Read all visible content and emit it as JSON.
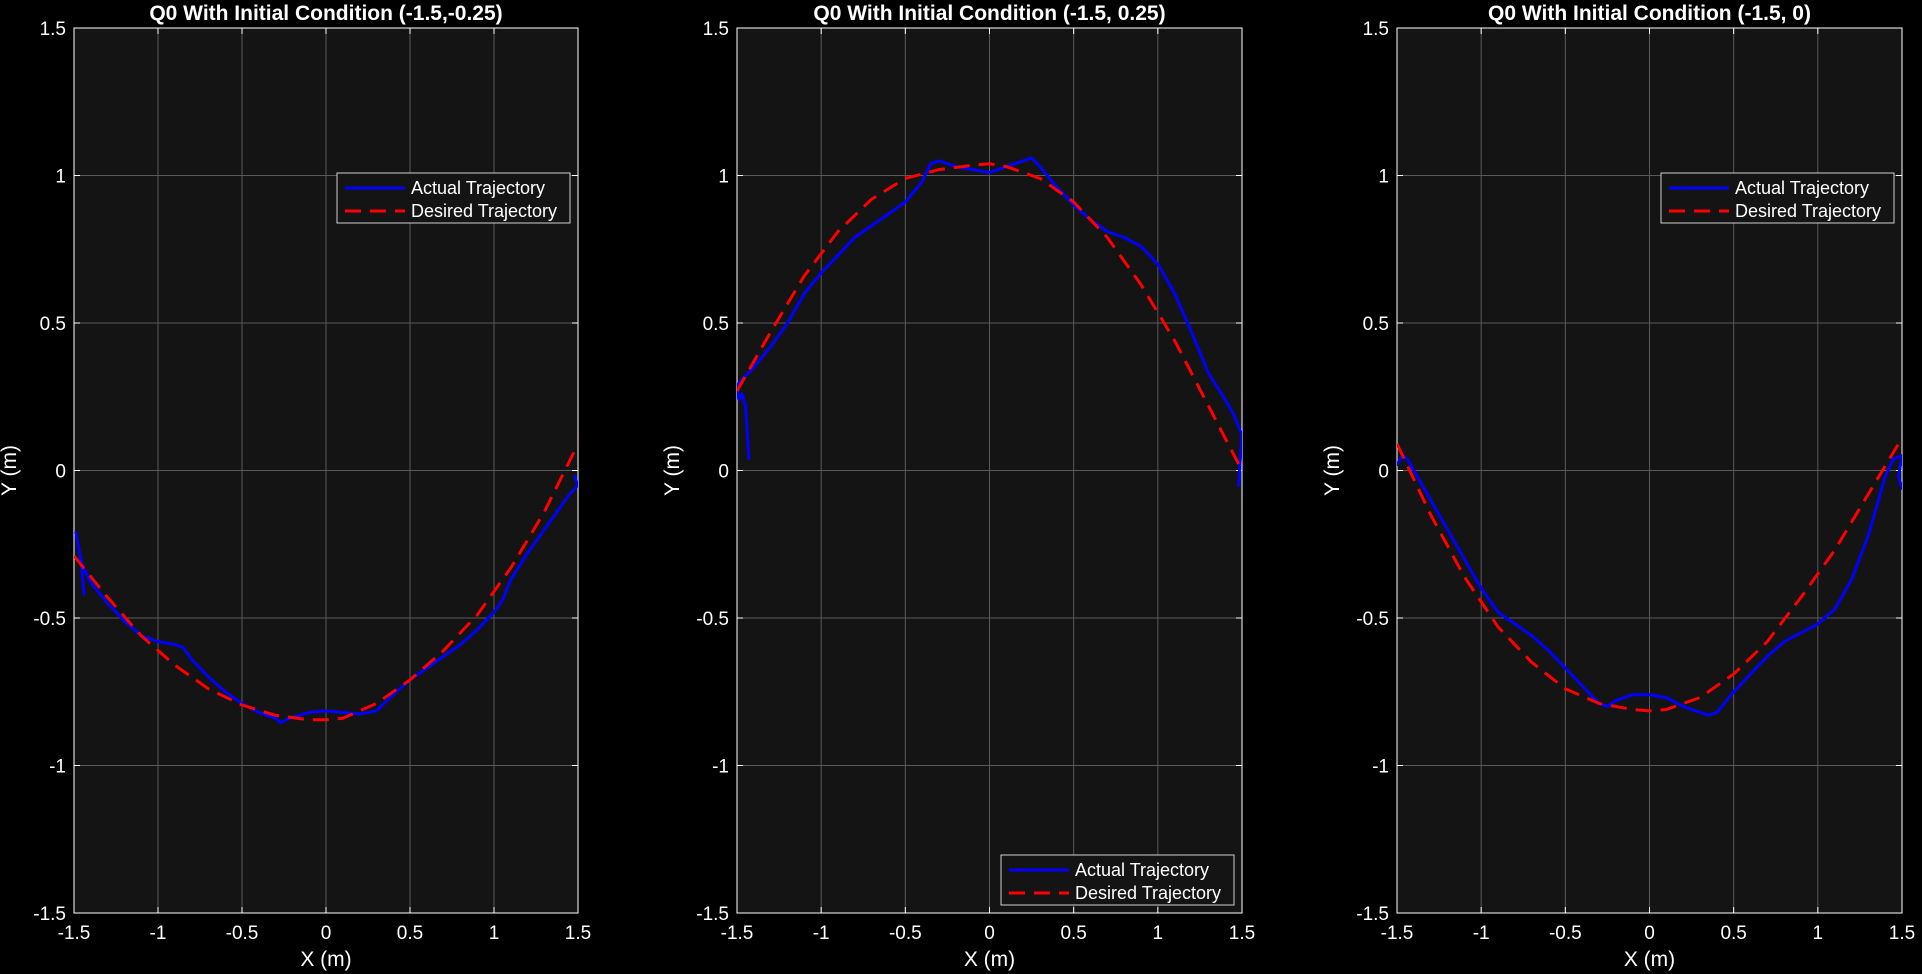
{
  "figure": {
    "background": "#000000",
    "axes_background": "#141414",
    "grid_color": "#5a5a5a"
  },
  "chart_data": [
    {
      "type": "line",
      "title": "Q0 With Initial Condition (-1.5,-0.25)",
      "xlabel": "X (m)",
      "ylabel": "Y (m)",
      "xlim": [
        -1.5,
        1.5
      ],
      "ylim": [
        -1.5,
        1.5
      ],
      "xticks": [
        "-1.5",
        "-1",
        "-0.5",
        "0",
        "0.5",
        "1",
        "1.5"
      ],
      "yticks": [
        "-1.5",
        "-1",
        "-0.5",
        "0",
        "0.5",
        "1",
        "1.5"
      ],
      "grid": true,
      "legend": "top-right",
      "series": [
        {
          "name": "Actual Trajectory",
          "color": "#0000ff",
          "style": "solid",
          "x": [
            -1.44,
            -1.46,
            -1.49,
            -1.47,
            -1.45,
            -1.4,
            -1.3,
            -1.2,
            -1.1,
            -1.0,
            -0.9,
            -0.85,
            -0.8,
            -0.7,
            -0.6,
            -0.5,
            -0.4,
            -0.3,
            -0.27,
            -0.22,
            -0.1,
            0.0,
            0.1,
            0.2,
            0.3,
            0.4,
            0.5,
            0.6,
            0.7,
            0.8,
            0.9,
            1.0,
            1.05,
            1.1,
            1.2,
            1.3,
            1.4,
            1.45,
            1.5,
            1.48
          ],
          "y": [
            -0.42,
            -0.3,
            -0.21,
            -0.27,
            -0.32,
            -0.38,
            -0.45,
            -0.51,
            -0.56,
            -0.58,
            -0.59,
            -0.6,
            -0.64,
            -0.7,
            -0.75,
            -0.79,
            -0.82,
            -0.84,
            -0.855,
            -0.84,
            -0.82,
            -0.815,
            -0.82,
            -0.825,
            -0.815,
            -0.76,
            -0.71,
            -0.67,
            -0.63,
            -0.59,
            -0.54,
            -0.48,
            -0.44,
            -0.37,
            -0.28,
            -0.2,
            -0.12,
            -0.08,
            -0.05,
            -0.02
          ]
        },
        {
          "name": "Desired Trajectory",
          "color": "#ff0000",
          "style": "dashed",
          "x": [
            -1.5,
            -1.3,
            -1.1,
            -0.9,
            -0.7,
            -0.5,
            -0.3,
            -0.1,
            0.0,
            0.1,
            0.3,
            0.5,
            0.7,
            0.9,
            1.1,
            1.3,
            1.5
          ],
          "y": [
            -0.29,
            -0.43,
            -0.56,
            -0.66,
            -0.74,
            -0.795,
            -0.83,
            -0.845,
            -0.845,
            -0.84,
            -0.79,
            -0.71,
            -0.61,
            -0.49,
            -0.33,
            -0.14,
            0.09
          ]
        }
      ]
    },
    {
      "type": "line",
      "title": "Q0 With Initial Condition (-1.5, 0.25)",
      "xlabel": "X (m)",
      "ylabel": "Y (m)",
      "xlim": [
        -1.5,
        1.5
      ],
      "ylim": [
        -1.5,
        1.5
      ],
      "xticks": [
        "-1.5",
        "-1",
        "-0.5",
        "0",
        "0.5",
        "1",
        "1.5"
      ],
      "yticks": [
        "-1.5",
        "-1",
        "-0.5",
        "0",
        "0.5",
        "1",
        "1.5"
      ],
      "grid": true,
      "legend": "bottom-right",
      "series": [
        {
          "name": "Actual Trajectory",
          "color": "#0000ff",
          "style": "solid",
          "x": [
            -1.43,
            -1.44,
            -1.45,
            -1.47,
            -1.49,
            -1.5,
            -1.45,
            -1.4,
            -1.3,
            -1.2,
            -1.1,
            -1.0,
            -0.9,
            -0.8,
            -0.7,
            -0.6,
            -0.5,
            -0.4,
            -0.35,
            -0.3,
            -0.2,
            -0.1,
            0.0,
            0.1,
            0.2,
            0.25,
            0.3,
            0.4,
            0.5,
            0.6,
            0.7,
            0.8,
            0.9,
            1.0,
            1.1,
            1.2,
            1.3,
            1.4,
            1.45,
            1.5,
            1.48
          ],
          "y": [
            0.04,
            0.14,
            0.22,
            0.26,
            0.24,
            0.29,
            0.32,
            0.35,
            0.42,
            0.5,
            0.6,
            0.67,
            0.73,
            0.79,
            0.83,
            0.87,
            0.91,
            0.98,
            1.04,
            1.05,
            1.03,
            1.02,
            1.01,
            1.03,
            1.05,
            1.06,
            1.03,
            0.96,
            0.9,
            0.85,
            0.81,
            0.79,
            0.76,
            0.7,
            0.6,
            0.47,
            0.33,
            0.24,
            0.19,
            0.12,
            -0.05
          ]
        },
        {
          "name": "Desired Trajectory",
          "color": "#ff0000",
          "style": "dashed",
          "x": [
            -1.5,
            -1.3,
            -1.1,
            -0.9,
            -0.7,
            -0.5,
            -0.3,
            -0.1,
            0.0,
            0.1,
            0.3,
            0.5,
            0.7,
            0.9,
            1.1,
            1.3,
            1.5
          ],
          "y": [
            0.27,
            0.47,
            0.66,
            0.81,
            0.92,
            0.99,
            1.02,
            1.035,
            1.04,
            1.03,
            0.99,
            0.91,
            0.79,
            0.63,
            0.44,
            0.22,
            0.0
          ]
        }
      ]
    },
    {
      "type": "line",
      "title": "Q0 With Initial Condition (-1.5, 0)",
      "xlabel": "X (m)",
      "ylabel": "Y (m)",
      "xlim": [
        -1.5,
        1.5
      ],
      "ylim": [
        -1.5,
        1.5
      ],
      "xticks": [
        "-1.5",
        "-1",
        "-0.5",
        "0",
        "0.5",
        "1",
        "1.5"
      ],
      "yticks": [
        "-1.5",
        "-1",
        "-0.5",
        "0",
        "0.5",
        "1",
        "1.5"
      ],
      "grid": true,
      "legend": "top-right",
      "series": [
        {
          "name": "Actual Trajectory",
          "color": "#0000ff",
          "style": "solid",
          "x": [
            -1.5,
            -1.47,
            -1.44,
            -1.4,
            -1.3,
            -1.2,
            -1.1,
            -1.0,
            -0.9,
            -0.8,
            -0.7,
            -0.6,
            -0.5,
            -0.4,
            -0.3,
            -0.25,
            -0.2,
            -0.1,
            0.0,
            0.1,
            0.2,
            0.3,
            0.35,
            0.4,
            0.5,
            0.6,
            0.7,
            0.8,
            0.9,
            1.0,
            1.1,
            1.2,
            1.3,
            1.35,
            1.4,
            1.45,
            1.5,
            1.48,
            1.5
          ],
          "y": [
            0.02,
            0.05,
            0.04,
            0.0,
            -0.1,
            -0.2,
            -0.3,
            -0.4,
            -0.48,
            -0.52,
            -0.56,
            -0.61,
            -0.67,
            -0.73,
            -0.79,
            -0.8,
            -0.78,
            -0.76,
            -0.76,
            -0.77,
            -0.8,
            -0.82,
            -0.83,
            -0.82,
            -0.75,
            -0.69,
            -0.63,
            -0.58,
            -0.55,
            -0.52,
            -0.47,
            -0.37,
            -0.22,
            -0.12,
            -0.02,
            0.04,
            0.05,
            -0.02,
            -0.06
          ]
        },
        {
          "name": "Desired Trajectory",
          "color": "#ff0000",
          "style": "dashed",
          "x": [
            -1.5,
            -1.3,
            -1.1,
            -0.9,
            -0.7,
            -0.5,
            -0.3,
            -0.1,
            0.0,
            0.1,
            0.3,
            0.5,
            0.7,
            0.9,
            1.1,
            1.3,
            1.5
          ],
          "y": [
            0.09,
            -0.15,
            -0.36,
            -0.53,
            -0.65,
            -0.74,
            -0.79,
            -0.81,
            -0.815,
            -0.81,
            -0.77,
            -0.69,
            -0.58,
            -0.43,
            -0.27,
            -0.08,
            0.11
          ]
        }
      ]
    }
  ]
}
